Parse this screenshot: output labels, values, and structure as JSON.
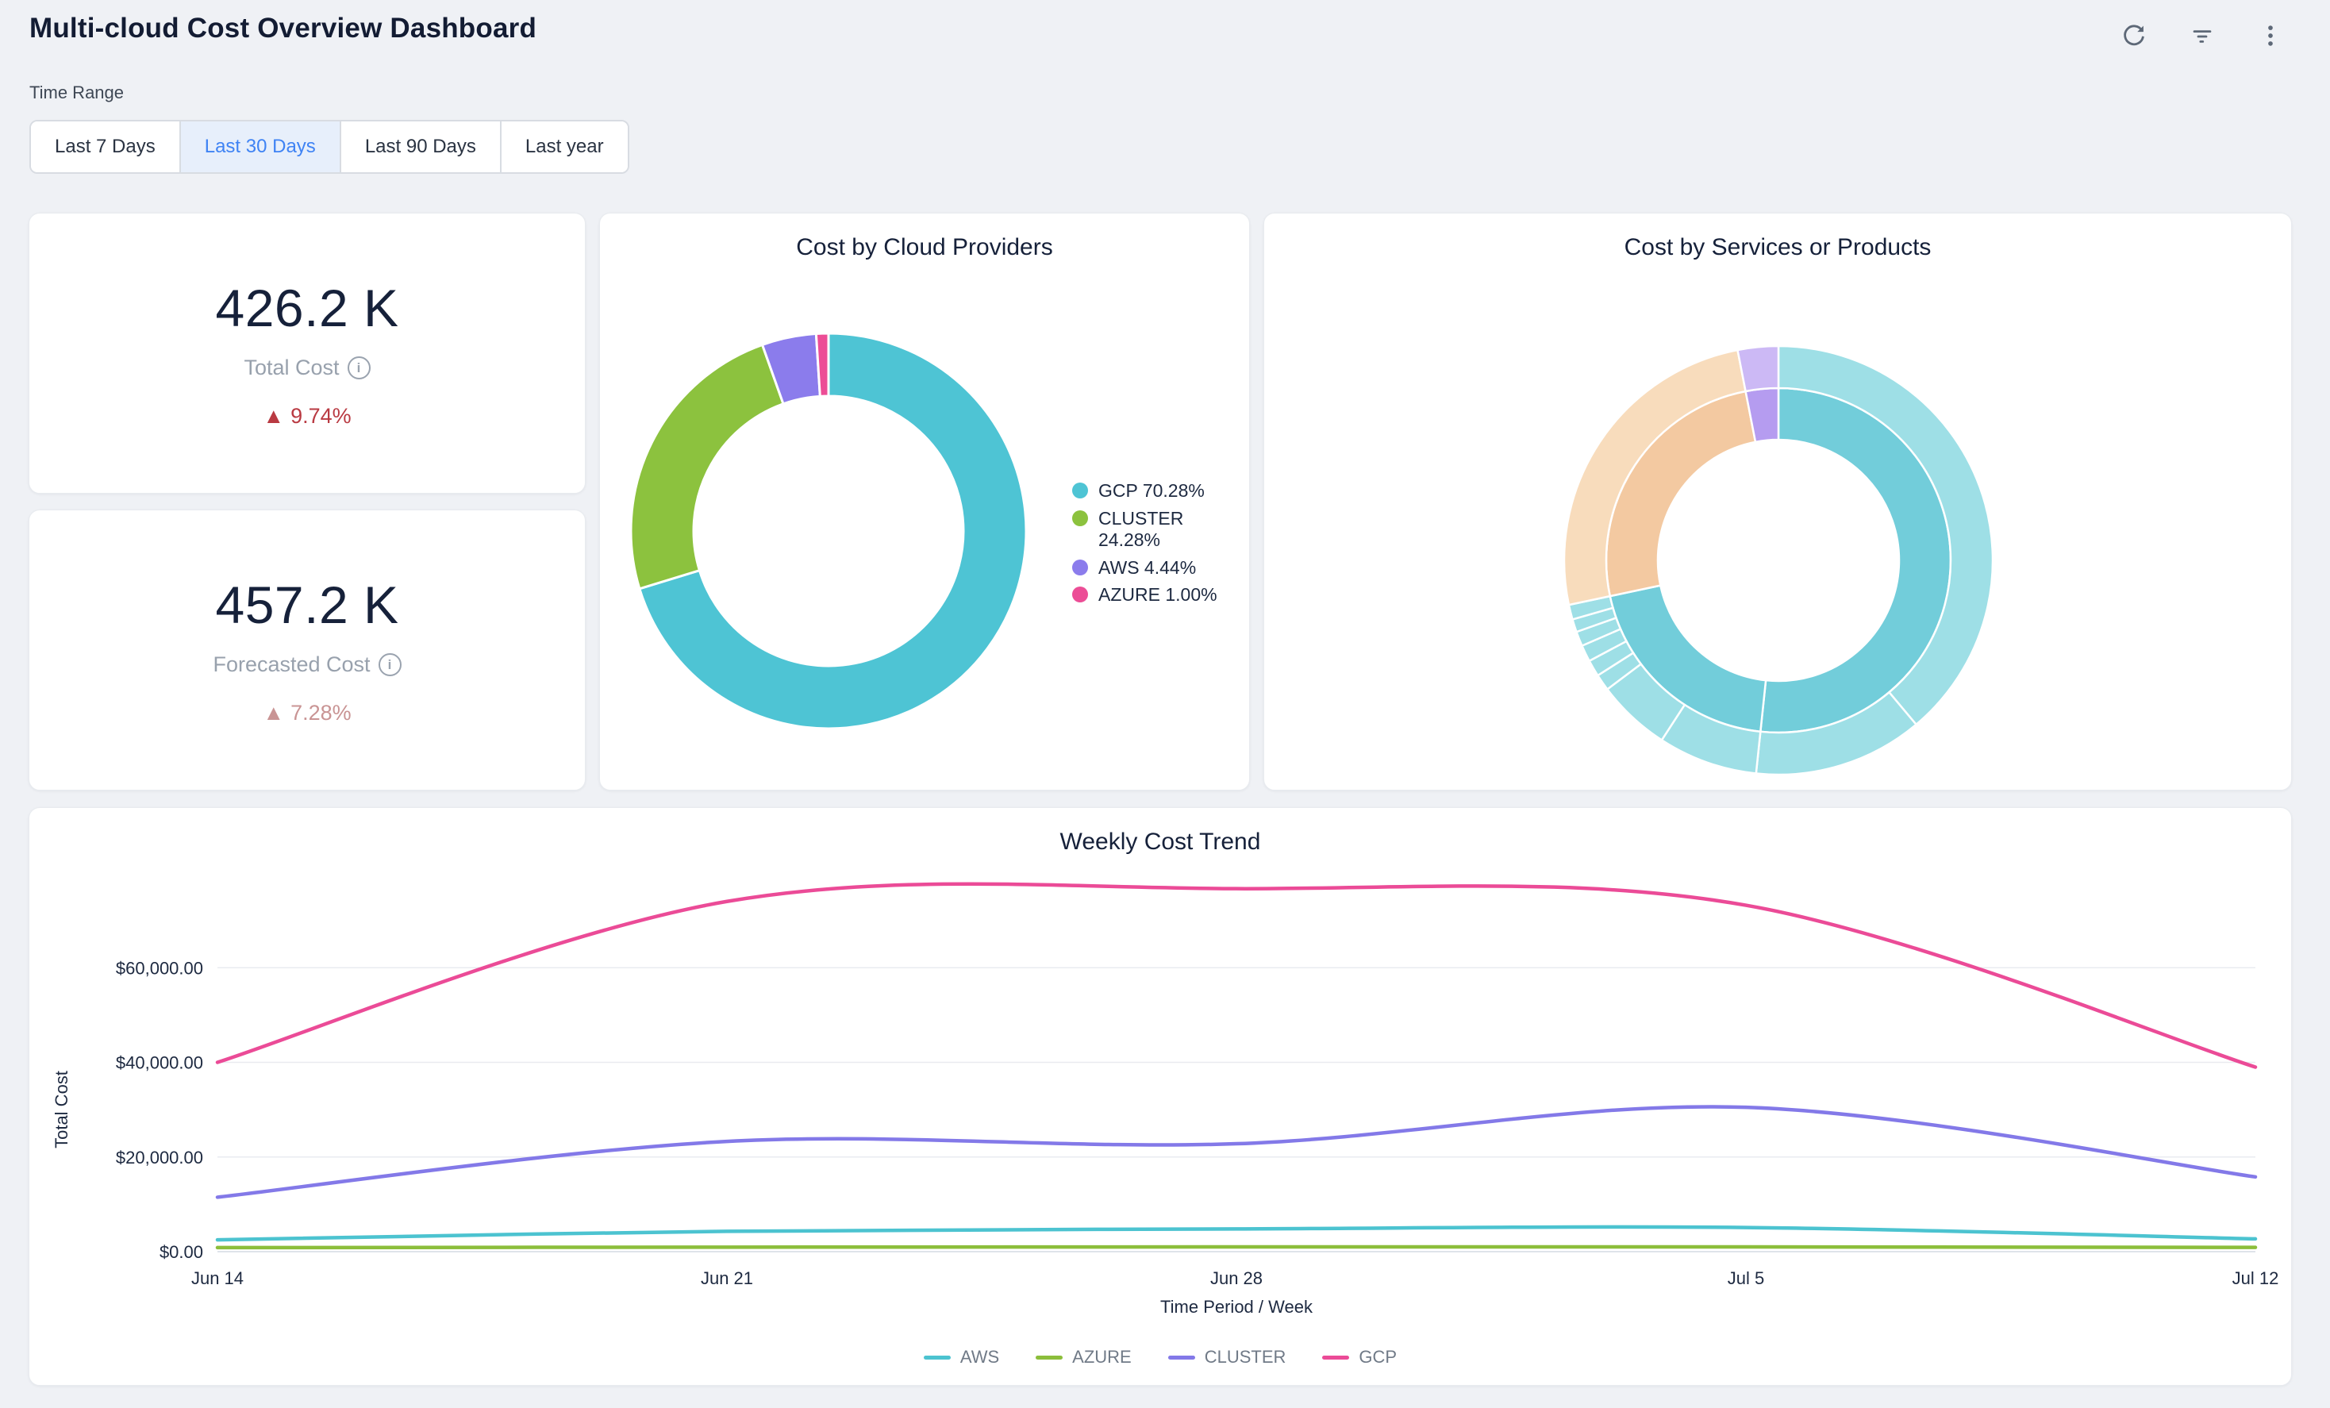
{
  "header": {
    "title": "Multi-cloud Cost Overview Dashboard",
    "icon_color": "#5d6877"
  },
  "time_range": {
    "label": "Time Range",
    "active_color": "#3f83f4",
    "active_bg": "#e7effb",
    "options": [
      {
        "label": "Last 7 Days",
        "active": false
      },
      {
        "label": "Last 30 Days",
        "active": true
      },
      {
        "label": "Last 90 Days",
        "active": false
      },
      {
        "label": "Last year",
        "active": false
      }
    ]
  },
  "kpis": [
    {
      "value": "426.2 K",
      "label": "Total Cost",
      "delta_icon": "▲",
      "delta": "9.74%",
      "delta_color": "#b93a42"
    },
    {
      "value": "457.2 K",
      "label": "Forecasted Cost",
      "delta_icon": "▲",
      "delta": "7.28%",
      "delta_color": "#c99494"
    }
  ],
  "chart_data": [
    {
      "type": "pie",
      "variant": "donut",
      "title": "Cost by Cloud Providers",
      "categories": [
        "GCP",
        "CLUSTER",
        "AWS",
        "AZURE"
      ],
      "values": [
        70.28,
        24.28,
        4.44,
        1.0
      ],
      "unit": "%",
      "colors": [
        "#4ec4d4",
        "#8cc23e",
        "#8b7cec",
        "#ec4d96"
      ],
      "legend": [
        "GCP 70.28%",
        "CLUSTER 24.28%",
        "AWS 4.44%",
        "AZURE 1.00%"
      ],
      "legend_position": "right"
    },
    {
      "type": "pie",
      "variant": "sunburst",
      "title": "Cost by Services or Products",
      "rings": {
        "inner": [
          {
            "start_deg": 0,
            "end_deg": 186,
            "color": "#72cdda"
          },
          {
            "start_deg": 186,
            "end_deg": 258,
            "color": "#72cdda"
          },
          {
            "start_deg": 258,
            "end_deg": 349,
            "color": "#f3c9a1"
          },
          {
            "start_deg": 349,
            "end_deg": 360,
            "color": "#b59cf0"
          }
        ],
        "outer": [
          {
            "start_deg": 0,
            "end_deg": 140,
            "color": "#9edfe6"
          },
          {
            "start_deg": 140,
            "end_deg": 186,
            "color": "#9edfe6"
          },
          {
            "start_deg": 186,
            "end_deg": 213,
            "color": "#9edfe6"
          },
          {
            "start_deg": 213,
            "end_deg": 233,
            "color": "#9edfe6"
          },
          {
            "start_deg": 233,
            "end_deg": 237.5,
            "color": "#9edfe6"
          },
          {
            "start_deg": 237.5,
            "end_deg": 242,
            "color": "#9edfe6"
          },
          {
            "start_deg": 242,
            "end_deg": 246.5,
            "color": "#9edfe6"
          },
          {
            "start_deg": 246.5,
            "end_deg": 250.5,
            "color": "#9edfe6"
          },
          {
            "start_deg": 250.5,
            "end_deg": 254,
            "color": "#9edfe6"
          },
          {
            "start_deg": 254,
            "end_deg": 258,
            "color": "#9edfe6"
          },
          {
            "start_deg": 258,
            "end_deg": 349,
            "color": "#f8dcbc"
          },
          {
            "start_deg": 349,
            "end_deg": 360,
            "color": "#ccb9f5"
          }
        ]
      },
      "legend_position": "none"
    },
    {
      "type": "line",
      "title": "Weekly Cost Trend",
      "x": [
        "Jun 14",
        "Jun 21",
        "Jun 28",
        "Jul 5",
        "Jul 12"
      ],
      "xlabel": "Time Period / Week",
      "ylabel": "Total Cost",
      "y_ticks": [
        "$0.00",
        "$20,000.00",
        "$40,000.00",
        "$60,000.00"
      ],
      "y_tick_values": [
        0,
        20000,
        40000,
        60000
      ],
      "ylim": [
        0,
        80000
      ],
      "grid": true,
      "legend_position": "bottom",
      "series": [
        {
          "name": "AWS",
          "color": "#4cc3d0",
          "values": [
            2500,
            4300,
            4800,
            5100,
            2700
          ]
        },
        {
          "name": "AZURE",
          "color": "#8cbe3b",
          "values": [
            850,
            950,
            1000,
            1000,
            900
          ]
        },
        {
          "name": "CLUSTER",
          "color": "#8379e8",
          "values": [
            11500,
            23300,
            22800,
            30500,
            15800
          ]
        },
        {
          "name": "GCP",
          "color": "#eb4b97",
          "values": [
            40000,
            74000,
            76700,
            73200,
            39000
          ]
        }
      ]
    }
  ]
}
